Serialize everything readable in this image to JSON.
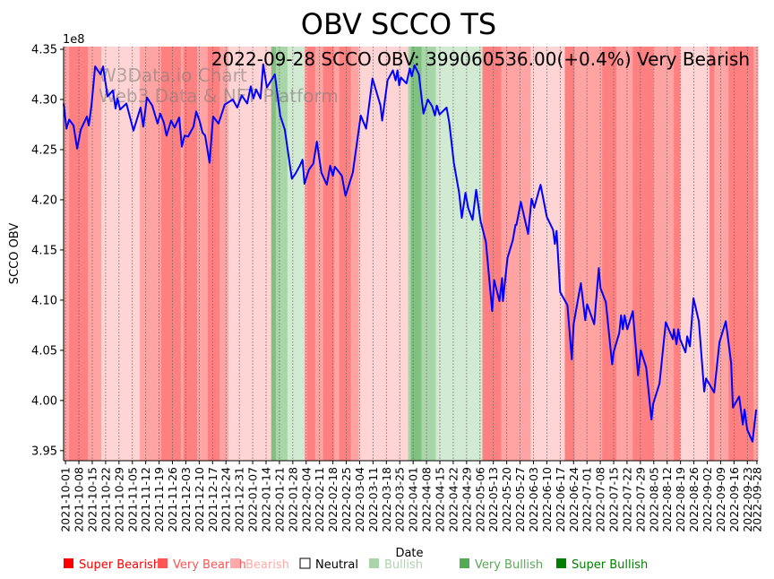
{
  "chart_data": {
    "type": "line",
    "title": "OBV SCCO TS",
    "annotation": "2022-09-28 SCCO OBV: 399060536.00(+0.4%) Very Bearish",
    "watermark": [
      "W3Data.io Chart",
      "Web3 Data & NFT Platform"
    ],
    "xlabel": "Date",
    "ylabel": "SCCO OBV",
    "y_scale_label": "1e8",
    "x_unit": "days since 2021-10-01",
    "xlim": [
      -1,
      362.5
    ],
    "ylim": [
      3.94,
      4.3527
    ],
    "yticks": [
      3.95,
      4.0,
      4.05,
      4.1,
      4.15,
      4.2,
      4.25,
      4.3,
      4.35
    ],
    "ytick_labels": [
      "3.95",
      "4.00",
      "4.05",
      "4.10",
      "4.15",
      "4.20",
      "4.25",
      "4.30",
      "4.35"
    ],
    "xtick_days": [
      0,
      7,
      14,
      21,
      28,
      35,
      42,
      49,
      56,
      63,
      70,
      77,
      84,
      91,
      98,
      105,
      112,
      119,
      126,
      133,
      140,
      147,
      154,
      161,
      168,
      175,
      182,
      189,
      196,
      203,
      210,
      217,
      224,
      231,
      238,
      245,
      252,
      259,
      266,
      273,
      280,
      287,
      294,
      301,
      308,
      315,
      322,
      329,
      336,
      343,
      350,
      357,
      362
    ],
    "xtick_labels": [
      "2021-10-01",
      "2021-10-08",
      "2021-10-15",
      "2021-10-22",
      "2021-10-29",
      "2021-11-05",
      "2021-11-12",
      "2021-11-19",
      "2021-11-26",
      "2021-12-03",
      "2021-12-10",
      "2021-12-17",
      "2021-12-24",
      "2021-12-31",
      "2022-01-07",
      "2022-01-14",
      "2022-01-21",
      "2022-01-28",
      "2022-02-04",
      "2022-02-11",
      "2022-02-18",
      "2022-02-25",
      "2022-03-04",
      "2022-03-11",
      "2022-03-18",
      "2022-03-25",
      "2022-04-01",
      "2022-04-08",
      "2022-04-15",
      "2022-04-22",
      "2022-04-29",
      "2022-05-06",
      "2022-05-13",
      "2022-05-20",
      "2022-05-27",
      "2022-06-03",
      "2022-06-10",
      "2022-06-17",
      "2022-06-24",
      "2022-07-01",
      "2022-07-08",
      "2022-07-15",
      "2022-07-22",
      "2022-07-29",
      "2022-08-05",
      "2022-08-12",
      "2022-08-19",
      "2022-08-26",
      "2022-09-02",
      "2022-09-09",
      "2022-09-16",
      "2022-09-23",
      "2022-09-28"
    ],
    "series": [
      {
        "name": "SCCO OBV (1e8)",
        "color": "#0000ff",
        "points": [
          [
            -1,
            4.296
          ],
          [
            0.5,
            4.271
          ],
          [
            1.9,
            4.28
          ],
          [
            4.2,
            4.274
          ],
          [
            6.1,
            4.251
          ],
          [
            8.0,
            4.27
          ],
          [
            11.2,
            4.283
          ],
          [
            12.2,
            4.274
          ],
          [
            13.6,
            4.294
          ],
          [
            15.5,
            4.333
          ],
          [
            18.3,
            4.325
          ],
          [
            19.7,
            4.333
          ],
          [
            22.0,
            4.303
          ],
          [
            24.8,
            4.309
          ],
          [
            26.2,
            4.291
          ],
          [
            27.2,
            4.301
          ],
          [
            28.6,
            4.29
          ],
          [
            31.9,
            4.296
          ],
          [
            35.6,
            4.269
          ],
          [
            39.3,
            4.292
          ],
          [
            40.7,
            4.273
          ],
          [
            42.6,
            4.302
          ],
          [
            45.4,
            4.294
          ],
          [
            48.2,
            4.276
          ],
          [
            49.6,
            4.286
          ],
          [
            51.5,
            4.277
          ],
          [
            52.9,
            4.264
          ],
          [
            55.3,
            4.279
          ],
          [
            57.1,
            4.272
          ],
          [
            59.5,
            4.282
          ],
          [
            60.9,
            4.253
          ],
          [
            62.3,
            4.264
          ],
          [
            64.2,
            4.263
          ],
          [
            67.0,
            4.273
          ],
          [
            68.4,
            4.288
          ],
          [
            70.3,
            4.278
          ],
          [
            71.7,
            4.267
          ],
          [
            73.1,
            4.264
          ],
          [
            75.4,
            4.237
          ],
          [
            77.3,
            4.283
          ],
          [
            80.1,
            4.276
          ],
          [
            83.4,
            4.295
          ],
          [
            87.6,
            4.3
          ],
          [
            89.9,
            4.292
          ],
          [
            92.3,
            4.304
          ],
          [
            95.1,
            4.296
          ],
          [
            97.0,
            4.313
          ],
          [
            98.4,
            4.301
          ],
          [
            99.8,
            4.31
          ],
          [
            102.1,
            4.301
          ],
          [
            103.5,
            4.335
          ],
          [
            105.4,
            4.312
          ],
          [
            109.6,
            4.325
          ],
          [
            112.4,
            4.284
          ],
          [
            114.8,
            4.27
          ],
          [
            118.5,
            4.221
          ],
          [
            120.4,
            4.226
          ],
          [
            122.7,
            4.234
          ],
          [
            124.1,
            4.24
          ],
          [
            125.1,
            4.216
          ],
          [
            127.4,
            4.23
          ],
          [
            129.7,
            4.236
          ],
          [
            131.6,
            4.258
          ],
          [
            134.0,
            4.227
          ],
          [
            136.8,
            4.215
          ],
          [
            138.6,
            4.234
          ],
          [
            140.0,
            4.224
          ],
          [
            141.0,
            4.233
          ],
          [
            144.7,
            4.224
          ],
          [
            146.6,
            4.204
          ],
          [
            150.4,
            4.227
          ],
          [
            154.6,
            4.284
          ],
          [
            157.4,
            4.271
          ],
          [
            160.7,
            4.321
          ],
          [
            164.9,
            4.294
          ],
          [
            165.8,
            4.279
          ],
          [
            168.6,
            4.319
          ],
          [
            171.4,
            4.329
          ],
          [
            172.8,
            4.319
          ],
          [
            173.8,
            4.329
          ],
          [
            174.7,
            4.314
          ],
          [
            175.6,
            4.322
          ],
          [
            178.5,
            4.316
          ],
          [
            180.3,
            4.331
          ],
          [
            181.3,
            4.323
          ],
          [
            182.7,
            4.334
          ],
          [
            185.0,
            4.325
          ],
          [
            187.4,
            4.286
          ],
          [
            189.7,
            4.3
          ],
          [
            192.0,
            4.293
          ],
          [
            193.4,
            4.284
          ],
          [
            194.4,
            4.294
          ],
          [
            195.8,
            4.285
          ],
          [
            199.5,
            4.292
          ],
          [
            200.9,
            4.277
          ],
          [
            203.3,
            4.237
          ],
          [
            206.1,
            4.207
          ],
          [
            207.5,
            4.182
          ],
          [
            209.4,
            4.207
          ],
          [
            210.8,
            4.192
          ],
          [
            213.1,
            4.18
          ],
          [
            215.0,
            4.21
          ],
          [
            217.3,
            4.179
          ],
          [
            220.1,
            4.158
          ],
          [
            223.4,
            4.089
          ],
          [
            224.4,
            4.12
          ],
          [
            227.2,
            4.099
          ],
          [
            228.6,
            4.122
          ],
          [
            229.0,
            4.099
          ],
          [
            231.4,
            4.142
          ],
          [
            234.2,
            4.16
          ],
          [
            235.6,
            4.175
          ],
          [
            236.1,
            4.175
          ],
          [
            238.4,
            4.198
          ],
          [
            242.2,
            4.166
          ],
          [
            244.0,
            4.201
          ],
          [
            245.4,
            4.192
          ],
          [
            248.7,
            4.215
          ],
          [
            252.0,
            4.183
          ],
          [
            255.3,
            4.17
          ],
          [
            256.2,
            4.156
          ],
          [
            257.1,
            4.169
          ],
          [
            259.0,
            4.108
          ],
          [
            262.8,
            4.095
          ],
          [
            265.1,
            4.041
          ],
          [
            266.0,
            4.076
          ],
          [
            269.8,
            4.117
          ],
          [
            272.1,
            4.08
          ],
          [
            273.1,
            4.096
          ],
          [
            276.8,
            4.076
          ],
          [
            279.2,
            4.132
          ],
          [
            280.1,
            4.112
          ],
          [
            282.9,
            4.098
          ],
          [
            286.2,
            4.036
          ],
          [
            287.1,
            4.049
          ],
          [
            289.9,
            4.067
          ],
          [
            290.9,
            4.085
          ],
          [
            291.8,
            4.071
          ],
          [
            292.7,
            4.085
          ],
          [
            294.1,
            4.071
          ],
          [
            297.0,
            4.089
          ],
          [
            299.8,
            4.025
          ],
          [
            301.2,
            4.05
          ],
          [
            304.0,
            4.033
          ],
          [
            306.8,
            3.981
          ],
          [
            307.7,
            3.997
          ],
          [
            311.0,
            4.017
          ],
          [
            314.3,
            4.078
          ],
          [
            318.0,
            4.061
          ],
          [
            318.5,
            4.071
          ],
          [
            319.9,
            4.056
          ],
          [
            320.8,
            4.071
          ],
          [
            321.8,
            4.061
          ],
          [
            324.6,
            4.048
          ],
          [
            325.5,
            4.064
          ],
          [
            326.9,
            4.054
          ],
          [
            328.8,
            4.102
          ],
          [
            331.6,
            4.079
          ],
          [
            334.4,
            4.009
          ],
          [
            335.4,
            4.022
          ],
          [
            339.6,
            4.008
          ],
          [
            342.4,
            4.058
          ],
          [
            345.7,
            4.079
          ],
          [
            348.5,
            4.037
          ],
          [
            349.4,
            3.993
          ],
          [
            352.7,
            4.004
          ],
          [
            354.6,
            3.976
          ],
          [
            355.5,
            3.991
          ],
          [
            356.9,
            3.971
          ],
          [
            359.7,
            3.959
          ],
          [
            361.6,
            3.991
          ]
        ]
      }
    ],
    "sentiment_bands": [
      [
        -3.7,
        1.9,
        "very_bearish"
      ],
      [
        1.9,
        11.7,
        "super_bearish"
      ],
      [
        11.7,
        18.7,
        "very_bearish"
      ],
      [
        18.7,
        38.9,
        "bearish"
      ],
      [
        38.9,
        50.1,
        "very_bearish"
      ],
      [
        50.1,
        60.4,
        "super_bearish"
      ],
      [
        60.4,
        61.8,
        "very_bearish"
      ],
      [
        61.8,
        68.9,
        "super_bearish"
      ],
      [
        68.9,
        74.5,
        "very_bearish"
      ],
      [
        74.5,
        80.6,
        "super_bearish"
      ],
      [
        80.6,
        85.2,
        "very_bearish"
      ],
      [
        85.2,
        107.7,
        "bearish"
      ],
      [
        107.7,
        110.1,
        "super_bullish"
      ],
      [
        110.1,
        116.2,
        "very_bullish"
      ],
      [
        116.2,
        125.1,
        "bullish"
      ],
      [
        125.1,
        126.5,
        "very_bearish"
      ],
      [
        126.5,
        130.7,
        "super_bearish"
      ],
      [
        130.7,
        134.9,
        "very_bearish"
      ],
      [
        134.9,
        140.5,
        "super_bearish"
      ],
      [
        140.5,
        143.3,
        "very_bearish"
      ],
      [
        143.3,
        149.4,
        "super_bearish"
      ],
      [
        149.4,
        153.6,
        "very_bearish"
      ],
      [
        153.6,
        179.4,
        "bearish"
      ],
      [
        179.4,
        180.8,
        "very_bullish"
      ],
      [
        180.8,
        186.4,
        "super_bullish"
      ],
      [
        186.4,
        193.9,
        "very_bullish"
      ],
      [
        193.9,
        218.3,
        "bullish"
      ],
      [
        218.3,
        228.1,
        "super_bearish"
      ],
      [
        228.1,
        243.6,
        "very_bearish"
      ],
      [
        243.6,
        261.4,
        "bearish"
      ],
      [
        261.4,
        266.5,
        "super_bearish"
      ],
      [
        266.5,
        281.0,
        "very_bearish"
      ],
      [
        281.0,
        288.5,
        "super_bearish"
      ],
      [
        288.5,
        297.0,
        "very_bearish"
      ],
      [
        297.0,
        307.7,
        "super_bearish"
      ],
      [
        307.7,
        318.5,
        "very_bearish"
      ],
      [
        318.5,
        321.8,
        "super_bearish"
      ],
      [
        321.8,
        337.2,
        "bearish"
      ],
      [
        337.2,
        339.6,
        "super_bearish"
      ],
      [
        339.6,
        347.1,
        "very_bearish"
      ],
      [
        347.1,
        360.2,
        "super_bearish"
      ],
      [
        360.2,
        362.5,
        "very_bearish"
      ]
    ],
    "band_colors": {
      "super_bearish": "#ff8080",
      "very_bearish": "#ffa3a3",
      "bearish": "#ffd4d4",
      "neutral": "#ffffff",
      "bullish": "#d2ead2",
      "very_bullish": "#a8d6a8",
      "super_bullish": "#80c080"
    },
    "legend": {
      "placement": "bottom",
      "items": [
        {
          "key": "super_bearish",
          "label": "Super Bearish",
          "color": "#ff0000",
          "text_color": "#ff0000"
        },
        {
          "key": "very_bearish",
          "label": "Very Bearish",
          "color": "#ff5555",
          "text_color": "#ff5555"
        },
        {
          "key": "bearish",
          "label": "Bearish",
          "color": "#ffaaaa",
          "text_color": "#ffaaaa"
        },
        {
          "key": "neutral",
          "label": "Neutral",
          "color": "#ffffff",
          "text_color": "#000000"
        },
        {
          "key": "bullish",
          "label": "Bullish",
          "color": "#aad5aa",
          "text_color": "#aad5aa"
        },
        {
          "key": "very_bullish",
          "label": "Very Bullish",
          "color": "#55aa55",
          "text_color": "#55aa55"
        },
        {
          "key": "super_bullish",
          "label": "Super Bullish",
          "color": "#008000",
          "text_color": "#008000"
        }
      ]
    }
  }
}
